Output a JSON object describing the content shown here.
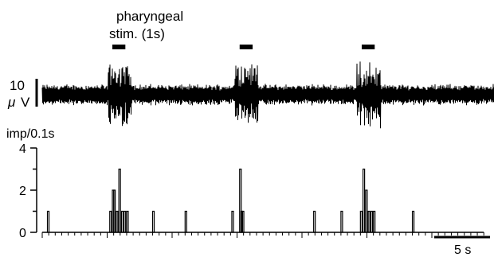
{
  "chart_data": [
    {
      "type": "line",
      "title": "",
      "annotation": {
        "line1": "pharyngeal",
        "line2": "stim. (1s)"
      },
      "stim_onsets_s": [
        5.4,
        15.2,
        24.6
      ],
      "stim_duration_s": 1,
      "trace_scale_bar": {
        "value": "10",
        "unit": "μ",
        "unit2": "V"
      },
      "trace_color": "#000000"
    },
    {
      "type": "bar",
      "ylabel": "imp/0.1s",
      "ylim": [
        0,
        4
      ],
      "y_ticks": [
        "0",
        "2",
        "4"
      ],
      "xlim": [
        0,
        34
      ],
      "bin_width_s": 0.1,
      "events_t_s": [
        0.4,
        5.2,
        5.4,
        5.5,
        5.7,
        5.9,
        6.1,
        6.3,
        6.5,
        8.5,
        11,
        14.6,
        15.2,
        15.3,
        15.4,
        20.9,
        23,
        24.5,
        24.7,
        24.9,
        25.1,
        25.3,
        25.5,
        28.5
      ],
      "counts": [
        1,
        1,
        2,
        2,
        1,
        3,
        1,
        1,
        1,
        1,
        1,
        1,
        3,
        1,
        1,
        1,
        1,
        1,
        3,
        2,
        1,
        1,
        1,
        1
      ],
      "time_scale_bar": {
        "value_s": 5,
        "label": "5 s"
      }
    }
  ]
}
